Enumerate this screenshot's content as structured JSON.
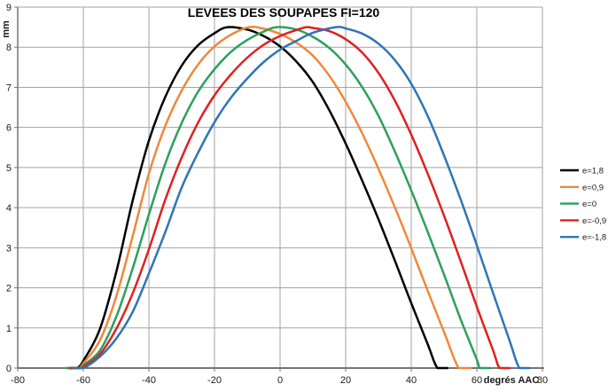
{
  "chart_data": {
    "type": "line",
    "title": "LEVEES DES SOUPAPES FI=120",
    "xlabel": "degrés AAC",
    "ylabel": "mm",
    "xlim": [
      -80,
      80
    ],
    "ylim": [
      0,
      9
    ],
    "x_ticks": [
      -80,
      -60,
      -40,
      -20,
      0,
      20,
      40,
      60,
      80
    ],
    "y_ticks": [
      0,
      1,
      2,
      3,
      4,
      5,
      6,
      7,
      8,
      9
    ],
    "grid": true,
    "legend_position": "right",
    "max_lift_mm": 8.5,
    "series": [
      {
        "label": "e=1,8",
        "color": "#000000",
        "points": [
          [
            -65,
            0
          ],
          [
            -62,
            0
          ],
          [
            -60,
            0.18
          ],
          [
            -55,
            0.96
          ],
          [
            -50,
            2.38
          ],
          [
            -45,
            4.16
          ],
          [
            -40,
            5.67
          ],
          [
            -35,
            6.76
          ],
          [
            -30,
            7.54
          ],
          [
            -25,
            8.05
          ],
          [
            -20,
            8.35
          ],
          [
            -16,
            8.5
          ],
          [
            -10,
            8.44
          ],
          [
            -5,
            8.28
          ],
          [
            0,
            8.02
          ],
          [
            5,
            7.64
          ],
          [
            10,
            7.13
          ],
          [
            15,
            6.43
          ],
          [
            20,
            5.6
          ],
          [
            25,
            4.68
          ],
          [
            30,
            3.71
          ],
          [
            35,
            2.68
          ],
          [
            40,
            1.62
          ],
          [
            45,
            0.6
          ],
          [
            48,
            0
          ],
          [
            51,
            0
          ]
        ]
      },
      {
        "label": "e=0,9",
        "color": "#F0883C",
        "points": [
          [
            -65,
            0
          ],
          [
            -61.5,
            0
          ],
          [
            -60,
            0.12
          ],
          [
            -55,
            0.68
          ],
          [
            -50,
            1.77
          ],
          [
            -45,
            3.27
          ],
          [
            -40,
            4.85
          ],
          [
            -35,
            6.04
          ],
          [
            -30,
            6.92
          ],
          [
            -25,
            7.57
          ],
          [
            -20,
            8.02
          ],
          [
            -15,
            8.31
          ],
          [
            -9.5,
            8.5
          ],
          [
            -5,
            8.46
          ],
          [
            0,
            8.33
          ],
          [
            5,
            8.11
          ],
          [
            10,
            7.79
          ],
          [
            15,
            7.29
          ],
          [
            20,
            6.64
          ],
          [
            25,
            5.86
          ],
          [
            30,
            4.97
          ],
          [
            35,
            4.01
          ],
          [
            40,
            2.99
          ],
          [
            45,
            1.93
          ],
          [
            50,
            0.9
          ],
          [
            54.5,
            0
          ],
          [
            58,
            0
          ]
        ]
      },
      {
        "label": "e=0",
        "color": "#2CA05A",
        "points": [
          [
            -65,
            0
          ],
          [
            -61,
            0
          ],
          [
            -60,
            0.07
          ],
          [
            -55,
            0.43
          ],
          [
            -50,
            1.27
          ],
          [
            -45,
            2.47
          ],
          [
            -40,
            3.83
          ],
          [
            -35,
            5.1
          ],
          [
            -30,
            6.11
          ],
          [
            -25,
            6.89
          ],
          [
            -20,
            7.45
          ],
          [
            -15,
            7.88
          ],
          [
            -10,
            8.18
          ],
          [
            -5,
            8.39
          ],
          [
            -1,
            8.5
          ],
          [
            5,
            8.44
          ],
          [
            10,
            8.26
          ],
          [
            15,
            7.98
          ],
          [
            20,
            7.57
          ],
          [
            25,
            7.01
          ],
          [
            30,
            6.29
          ],
          [
            35,
            5.4
          ],
          [
            40,
            4.43
          ],
          [
            45,
            3.4
          ],
          [
            50,
            2.33
          ],
          [
            55,
            1.23
          ],
          [
            60,
            0.21
          ],
          [
            61,
            0
          ],
          [
            64,
            0
          ]
        ]
      },
      {
        "label": "e=-0,9",
        "color": "#E02020",
        "points": [
          [
            -64,
            0
          ],
          [
            -60.5,
            0
          ],
          [
            -60,
            0.03
          ],
          [
            -55,
            0.34
          ],
          [
            -50,
            0.97
          ],
          [
            -45,
            1.85
          ],
          [
            -40,
            2.96
          ],
          [
            -35,
            4.2
          ],
          [
            -30,
            5.25
          ],
          [
            -25,
            6.12
          ],
          [
            -20,
            6.8
          ],
          [
            -15,
            7.32
          ],
          [
            -10,
            7.74
          ],
          [
            -5,
            8.06
          ],
          [
            0,
            8.28
          ],
          [
            5,
            8.43
          ],
          [
            8,
            8.5
          ],
          [
            10,
            8.48
          ],
          [
            15,
            8.4
          ],
          [
            20,
            8.2
          ],
          [
            25,
            7.87
          ],
          [
            30,
            7.36
          ],
          [
            35,
            6.67
          ],
          [
            40,
            5.82
          ],
          [
            45,
            4.85
          ],
          [
            50,
            3.8
          ],
          [
            55,
            2.68
          ],
          [
            60,
            1.53
          ],
          [
            65,
            0.43
          ],
          [
            67,
            0
          ],
          [
            70,
            0
          ]
        ]
      },
      {
        "label": "e=-1,8",
        "color": "#2E75B6",
        "points": [
          [
            -63,
            0
          ],
          [
            -60,
            0
          ],
          [
            -55,
            0.28
          ],
          [
            -50,
            0.73
          ],
          [
            -45,
            1.39
          ],
          [
            -40,
            2.36
          ],
          [
            -35,
            3.39
          ],
          [
            -30,
            4.5
          ],
          [
            -25,
            5.37
          ],
          [
            -20,
            6.13
          ],
          [
            -15,
            6.74
          ],
          [
            -10,
            7.22
          ],
          [
            -5,
            7.63
          ],
          [
            0,
            7.94
          ],
          [
            5,
            8.16
          ],
          [
            10,
            8.36
          ],
          [
            17,
            8.5
          ],
          [
            20,
            8.47
          ],
          [
            25,
            8.34
          ],
          [
            30,
            8.09
          ],
          [
            35,
            7.68
          ],
          [
            40,
            7.09
          ],
          [
            45,
            6.29
          ],
          [
            50,
            5.3
          ],
          [
            55,
            4.22
          ],
          [
            60,
            3.06
          ],
          [
            65,
            1.86
          ],
          [
            70,
            0.68
          ],
          [
            73,
            0
          ],
          [
            76,
            0
          ]
        ]
      }
    ]
  },
  "styles": {
    "grid_color": "#A3A3A3",
    "axis_color": "#757575",
    "label_color": "#1A1A1A",
    "background": "#FFFFFF"
  }
}
